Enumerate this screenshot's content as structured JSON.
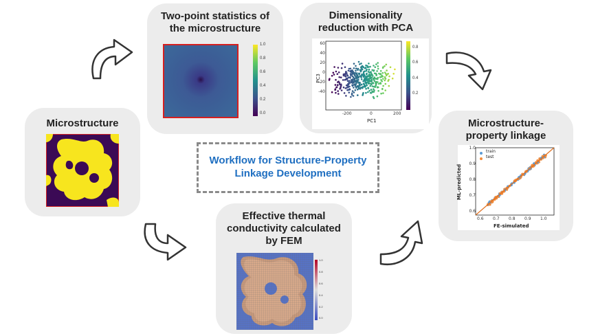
{
  "center": {
    "text": "Workflow for Structure-Property\nLinkage Development"
  },
  "cards": {
    "microstructure": {
      "title": "Microstructure"
    },
    "two_point": {
      "title": "Two-point statistics of\nthe microstructure",
      "colorbar_ticks": [
        "1.0",
        "0.8",
        "0.6",
        "0.4",
        "0.2",
        "0.0"
      ]
    },
    "pca": {
      "title": "Dimensionality\nreduction with PCA",
      "xlabel": "PC1",
      "ylabel": "PC3",
      "xticks": [
        "-200",
        "0",
        "200"
      ],
      "yticks": [
        "60",
        "40",
        "20",
        "0",
        "-20",
        "-40"
      ],
      "colorbar_ticks": [
        "0.8",
        "0.6",
        "0.4",
        "0.2"
      ]
    },
    "fem": {
      "title": "Effective thermal\nconductivity calculated\nby FEM",
      "colorbar_ticks": [
        "1.0",
        "0.8",
        "0.6",
        "0.4",
        "0.2",
        "0.0"
      ]
    },
    "linkage": {
      "title": "Microstructure-\nproperty linkage",
      "xlabel": "FE-simulated",
      "ylabel": "ML-predicted",
      "xticks": [
        "0.6",
        "0.7",
        "0.8",
        "0.9",
        "1.0"
      ],
      "yticks": [
        "1.0",
        "0.9",
        "0.8",
        "0.7",
        "0.6"
      ],
      "legend": [
        "train",
        "test"
      ]
    }
  },
  "colors": {
    "accent_blue": "#1f6fc1",
    "train": "#5b9bd5",
    "test": "#f28c3c",
    "card_bg": "#ececec"
  }
}
